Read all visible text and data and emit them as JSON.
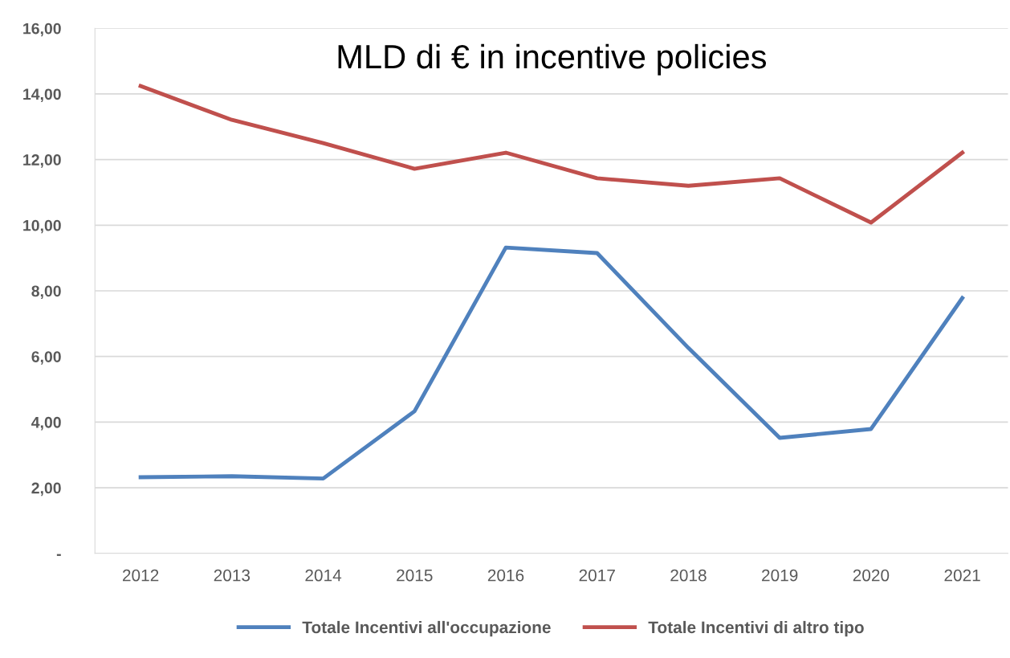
{
  "chart_data": {
    "type": "line",
    "title": "MLD di € in incentive policies",
    "categories": [
      "2012",
      "2013",
      "2014",
      "2015",
      "2016",
      "2017",
      "2018",
      "2019",
      "2020",
      "2021"
    ],
    "series": [
      {
        "name": "Totale Incentivi all'occupazione",
        "color": "#4f81bd",
        "values": [
          2.32,
          2.35,
          2.28,
          4.33,
          9.32,
          9.15,
          6.26,
          3.52,
          3.79,
          7.78
        ]
      },
      {
        "name": "Totale Incentivi di altro tipo",
        "color": "#c0504d",
        "values": [
          14.24,
          13.21,
          12.5,
          11.72,
          12.21,
          11.43,
          11.2,
          11.43,
          10.08,
          12.21
        ]
      }
    ],
    "ylim": [
      0,
      16
    ],
    "yticks": [
      {
        "value": 0,
        "label": "-"
      },
      {
        "value": 2,
        "label": "2,00"
      },
      {
        "value": 4,
        "label": "4,00"
      },
      {
        "value": 6,
        "label": "6,00"
      },
      {
        "value": 8,
        "label": "8,00"
      },
      {
        "value": 10,
        "label": "10,00"
      },
      {
        "value": 12,
        "label": "12,00"
      },
      {
        "value": 14,
        "label": "14,00"
      },
      {
        "value": 16,
        "label": "16,00"
      }
    ],
    "grid": "y",
    "legend": "bottom",
    "marker": "none",
    "line_style": "solid"
  }
}
